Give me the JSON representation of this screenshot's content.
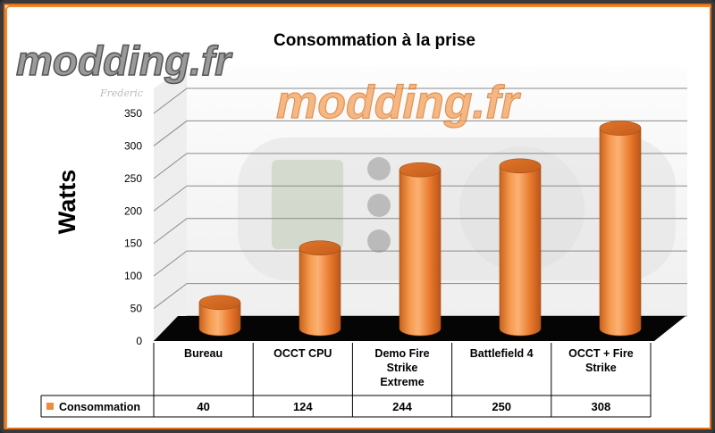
{
  "watermark": {
    "brand": "modding.fr",
    "signature": "Frederic"
  },
  "chart_data": {
    "type": "bar",
    "title": "Consommation à la prise",
    "ylabel": "Watts",
    "xlabel": "",
    "categories": [
      "Bureau",
      "OCCT CPU",
      "Demo Fire Strike Extreme",
      "Battlefield 4",
      "OCCT + Fire Strike"
    ],
    "category_lines": [
      [
        "Bureau"
      ],
      [
        "OCCT CPU"
      ],
      [
        "Demo Fire",
        "Strike",
        "Extreme"
      ],
      [
        "Battlefield 4"
      ],
      [
        "OCCT + Fire",
        "Strike"
      ]
    ],
    "series": [
      {
        "name": "Consommation",
        "values": [
          40,
          124,
          244,
          250,
          308
        ],
        "labels": [
          "40",
          "124",
          "244",
          "250",
          "308"
        ],
        "color": "#f08a3c"
      }
    ],
    "ylim": [
      0,
      350
    ],
    "yticks": [
      0,
      50,
      100,
      150,
      200,
      250,
      300,
      350
    ],
    "grid": true,
    "legend": "data-table",
    "style": "3d-cylinder"
  }
}
